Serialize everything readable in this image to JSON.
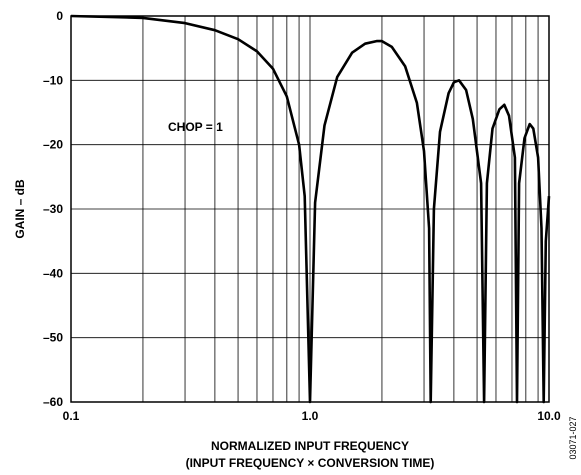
{
  "chart_data": {
    "type": "line",
    "xscale": "log",
    "xlim": [
      0.1,
      10.0
    ],
    "ylim": [
      -60,
      0
    ],
    "xticks": [
      0.1,
      1.0,
      10.0
    ],
    "xtick_labels": [
      "0.1",
      "1.0",
      "10.0"
    ],
    "yticks": [
      0,
      -10,
      -20,
      -30,
      -40,
      -50,
      -60
    ],
    "ytick_labels": [
      "0",
      "–10",
      "–20",
      "–30",
      "–40",
      "–50",
      "–60"
    ],
    "ylabel": "GAIN – dB",
    "xlabel": "NORMALIZED INPUT FREQUENCY",
    "xlabel2": "(INPUT FREQUENCY × CONVERSION TIME)",
    "annotation": "CHOP = 1",
    "figure_id": "03071-027",
    "grid": true,
    "series": [
      {
        "x": [
          0.1,
          0.2,
          0.3,
          0.4,
          0.5,
          0.6,
          0.7,
          0.8,
          0.9,
          0.95,
          1.0,
          1.05,
          1.15,
          1.3,
          1.5,
          1.7,
          1.9,
          2.0,
          2.2,
          2.5,
          2.8,
          3.0,
          3.15,
          3.2,
          3.3,
          3.5,
          3.8,
          4.0,
          4.2,
          4.5,
          4.8,
          5.2,
          5.35,
          5.5,
          5.8,
          6.2,
          6.5,
          6.8,
          7.2,
          7.35,
          7.5,
          7.9,
          8.3,
          8.6,
          9.0,
          9.3,
          9.5,
          9.7,
          10.0
        ],
        "values": [
          0,
          -0.3,
          -1.1,
          -2.2,
          -3.6,
          -5.5,
          -8.2,
          -12.5,
          -20.0,
          -28.0,
          -60,
          -29.0,
          -17.0,
          -9.5,
          -5.7,
          -4.3,
          -3.9,
          -3.9,
          -4.8,
          -7.8,
          -13.5,
          -21.0,
          -33.0,
          -60,
          -30.0,
          -18.0,
          -12.0,
          -10.3,
          -10.0,
          -11.5,
          -16.0,
          -26.0,
          -60,
          -26.0,
          -17.5,
          -14.5,
          -13.8,
          -15.5,
          -22.0,
          -60,
          -26.0,
          -19.0,
          -16.8,
          -17.5,
          -22.0,
          -33.0,
          -60,
          -35.0,
          -28.0
        ]
      }
    ]
  }
}
